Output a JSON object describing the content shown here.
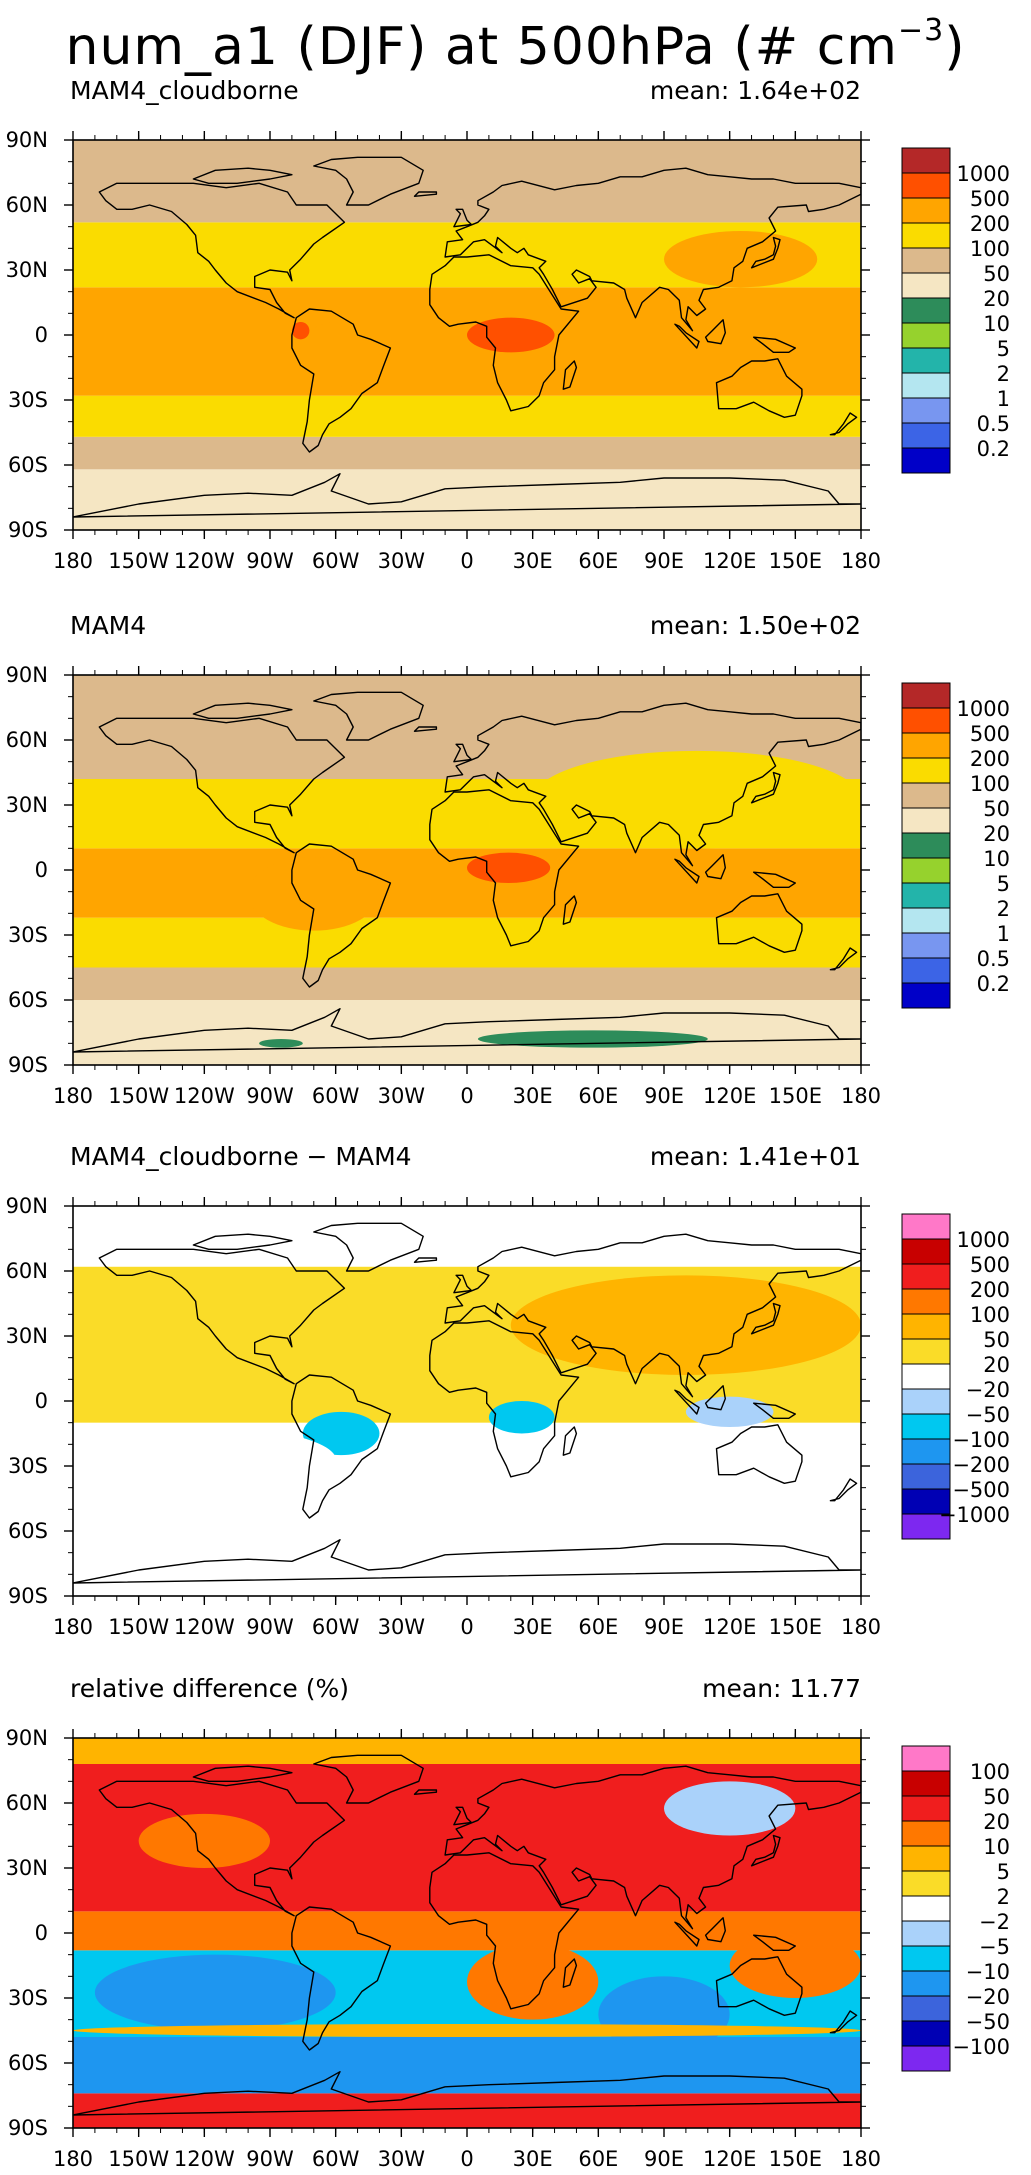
{
  "title": {
    "text": "num_a1 (DJF) at 500hPa (# cm",
    "exponent": "−3",
    "close": ")"
  },
  "colors": {
    "seq": [
      "#0000c8",
      "#3c64e6",
      "#7896f0",
      "#b4e6f0",
      "#23b4aa",
      "#96d22d",
      "#2d8c5a",
      "#f5e6c3",
      "#dcb98c",
      "#fadc00",
      "#ffa500",
      "#ff5000",
      "#b42828"
    ],
    "div": [
      "#7d28f0",
      "#0000b4",
      "#3c64dc",
      "#1e96f0",
      "#00c8f0",
      "#aad2fa",
      "#ffffff",
      "#fadc28",
      "#ffb400",
      "#ff7800",
      "#f01e1e",
      "#c80000",
      "#ff78c8"
    ]
  },
  "chart_data": [
    {
      "type": "heatmap",
      "title": "MAM4_cloudborne",
      "stat_label": "mean:",
      "stat_value": "1.64e+02",
      "x_ticks": [
        "180",
        "150W",
        "120W",
        "90W",
        "60W",
        "30W",
        "0",
        "30E",
        "60E",
        "90E",
        "120E",
        "150E",
        "180"
      ],
      "y_ticks": [
        "90N",
        "60N",
        "30N",
        "0",
        "30S",
        "60S",
        "90S"
      ],
      "xlim": [
        -180,
        180
      ],
      "ylim": [
        -90,
        90
      ],
      "colorbar_levels": [
        "1000",
        "500",
        "200",
        "100",
        "50",
        "20",
        "10",
        "5",
        "2",
        "1",
        "0.5",
        "0.2"
      ],
      "palette": "seq",
      "zonal_bands": [
        {
          "lat": [
            -90,
            -62
          ],
          "level": 7
        },
        {
          "lat": [
            -62,
            -47
          ],
          "level": 8
        },
        {
          "lat": [
            -47,
            -28
          ],
          "level": 9
        },
        {
          "lat": [
            -28,
            22
          ],
          "level": 10
        },
        {
          "lat": [
            22,
            52
          ],
          "level": 9
        },
        {
          "lat": [
            52,
            90
          ],
          "level": 8
        }
      ],
      "patches": [
        {
          "lon": [
            -78,
            -40
          ],
          "lat": [
            -24,
            6
          ],
          "level": 10
        },
        {
          "lon": [
            0,
            40
          ],
          "lat": [
            -8,
            8
          ],
          "level": 11
        },
        {
          "lon": [
            -80,
            -72
          ],
          "lat": [
            -2,
            6
          ],
          "level": 11
        },
        {
          "lon": [
            90,
            160
          ],
          "lat": [
            22,
            48
          ],
          "level": 10
        }
      ]
    },
    {
      "type": "heatmap",
      "title": "MAM4",
      "stat_label": "mean:",
      "stat_value": "1.50e+02",
      "x_ticks": [
        "180",
        "150W",
        "120W",
        "90W",
        "60W",
        "30W",
        "0",
        "30E",
        "60E",
        "90E",
        "120E",
        "150E",
        "180"
      ],
      "y_ticks": [
        "90N",
        "60N",
        "30N",
        "0",
        "30S",
        "60S",
        "90S"
      ],
      "xlim": [
        -180,
        180
      ],
      "ylim": [
        -90,
        90
      ],
      "colorbar_levels": [
        "1000",
        "500",
        "200",
        "100",
        "50",
        "20",
        "10",
        "5",
        "2",
        "1",
        "0.5",
        "0.2"
      ],
      "palette": "seq",
      "zonal_bands": [
        {
          "lat": [
            -90,
            -60
          ],
          "level": 7
        },
        {
          "lat": [
            -60,
            -45
          ],
          "level": 8
        },
        {
          "lat": [
            -45,
            -22
          ],
          "level": 9
        },
        {
          "lat": [
            -22,
            10
          ],
          "level": 10
        },
        {
          "lat": [
            10,
            42
          ],
          "level": 9
        },
        {
          "lat": [
            42,
            90
          ],
          "level": 8
        }
      ],
      "patches": [
        {
          "lon": [
            -100,
            -40
          ],
          "lat": [
            -28,
            6
          ],
          "level": 10
        },
        {
          "lon": [
            0,
            38
          ],
          "lat": [
            -6,
            8
          ],
          "level": 11
        },
        {
          "lon": [
            30,
            180
          ],
          "lat": [
            10,
            55
          ],
          "level": 9
        },
        {
          "lon": [
            5,
            110
          ],
          "lat": [
            -82,
            -74
          ],
          "level": 6
        },
        {
          "lon": [
            -95,
            -75
          ],
          "lat": [
            -82,
            -78
          ],
          "level": 6
        }
      ]
    },
    {
      "type": "heatmap",
      "title": "MAM4_cloudborne − MAM4",
      "stat_label": "mean:",
      "stat_value": "1.41e+01",
      "x_ticks": [
        "180",
        "150W",
        "120W",
        "90W",
        "60W",
        "30W",
        "0",
        "30E",
        "60E",
        "90E",
        "120E",
        "150E",
        "180"
      ],
      "y_ticks": [
        "90N",
        "60N",
        "30N",
        "0",
        "30S",
        "60S",
        "90S"
      ],
      "xlim": [
        -180,
        180
      ],
      "ylim": [
        -90,
        90
      ],
      "colorbar_levels": [
        "1000",
        "500",
        "200",
        "100",
        "50",
        "20",
        "−20",
        "−50",
        "−100",
        "−200",
        "−500",
        "−1000"
      ],
      "palette": "div",
      "zonal_bands": [
        {
          "lat": [
            -90,
            -42
          ],
          "level": 6
        },
        {
          "lat": [
            -42,
            -10
          ],
          "level": 6
        },
        {
          "lat": [
            -10,
            12
          ],
          "level": 7
        },
        {
          "lat": [
            12,
            62
          ],
          "level": 7
        },
        {
          "lat": [
            62,
            90
          ],
          "level": 6
        }
      ],
      "patches": [
        {
          "lon": [
            20,
            180
          ],
          "lat": [
            12,
            58
          ],
          "level": 8
        },
        {
          "lon": [
            -75,
            -40
          ],
          "lat": [
            -25,
            -5
          ],
          "level": 4
        },
        {
          "lon": [
            10,
            40
          ],
          "lat": [
            -15,
            0
          ],
          "level": 4
        },
        {
          "lon": [
            100,
            140
          ],
          "lat": [
            -12,
            2
          ],
          "level": 5
        },
        {
          "lon": [
            -180,
            -60
          ],
          "lat": [
            -42,
            -12
          ],
          "level": 6
        },
        {
          "lon": [
            60,
            140
          ],
          "lat": [
            -60,
            -12
          ],
          "level": 6
        }
      ]
    },
    {
      "type": "heatmap",
      "title": "relative difference (%)",
      "stat_label": "mean:",
      "stat_value": "11.77",
      "x_ticks": [
        "180",
        "150W",
        "120W",
        "90W",
        "60W",
        "30W",
        "0",
        "30E",
        "60E",
        "90E",
        "120E",
        "150E",
        "180"
      ],
      "y_ticks": [
        "90N",
        "60N",
        "30N",
        "0",
        "30S",
        "60S",
        "90S"
      ],
      "xlim": [
        -180,
        180
      ],
      "ylim": [
        -90,
        90
      ],
      "colorbar_levels": [
        "100",
        "50",
        "20",
        "10",
        "5",
        "2",
        "−2",
        "−5",
        "−10",
        "−20",
        "−50",
        "−100"
      ],
      "palette": "div",
      "zonal_bands": [
        {
          "lat": [
            -90,
            -74
          ],
          "level": 10
        },
        {
          "lat": [
            -74,
            -48
          ],
          "level": 3
        },
        {
          "lat": [
            -48,
            -8
          ],
          "level": 4
        },
        {
          "lat": [
            -8,
            10
          ],
          "level": 9
        },
        {
          "lat": [
            10,
            78
          ],
          "level": 10
        },
        {
          "lat": [
            78,
            90
          ],
          "level": 8
        }
      ],
      "patches": [
        {
          "lon": [
            -170,
            -60
          ],
          "lat": [
            -45,
            -10
          ],
          "level": 3
        },
        {
          "lon": [
            0,
            60
          ],
          "lat": [
            -40,
            -5
          ],
          "level": 9
        },
        {
          "lon": [
            60,
            120
          ],
          "lat": [
            -55,
            -20
          ],
          "level": 3
        },
        {
          "lon": [
            120,
            180
          ],
          "lat": [
            -30,
            0
          ],
          "level": 9
        },
        {
          "lon": [
            -150,
            -90
          ],
          "lat": [
            30,
            55
          ],
          "level": 9
        },
        {
          "lon": [
            90,
            150
          ],
          "lat": [
            45,
            70
          ],
          "level": 5
        },
        {
          "lon": [
            -180,
            180
          ],
          "lat": [
            -48,
            -42
          ],
          "level": 8
        }
      ]
    }
  ]
}
